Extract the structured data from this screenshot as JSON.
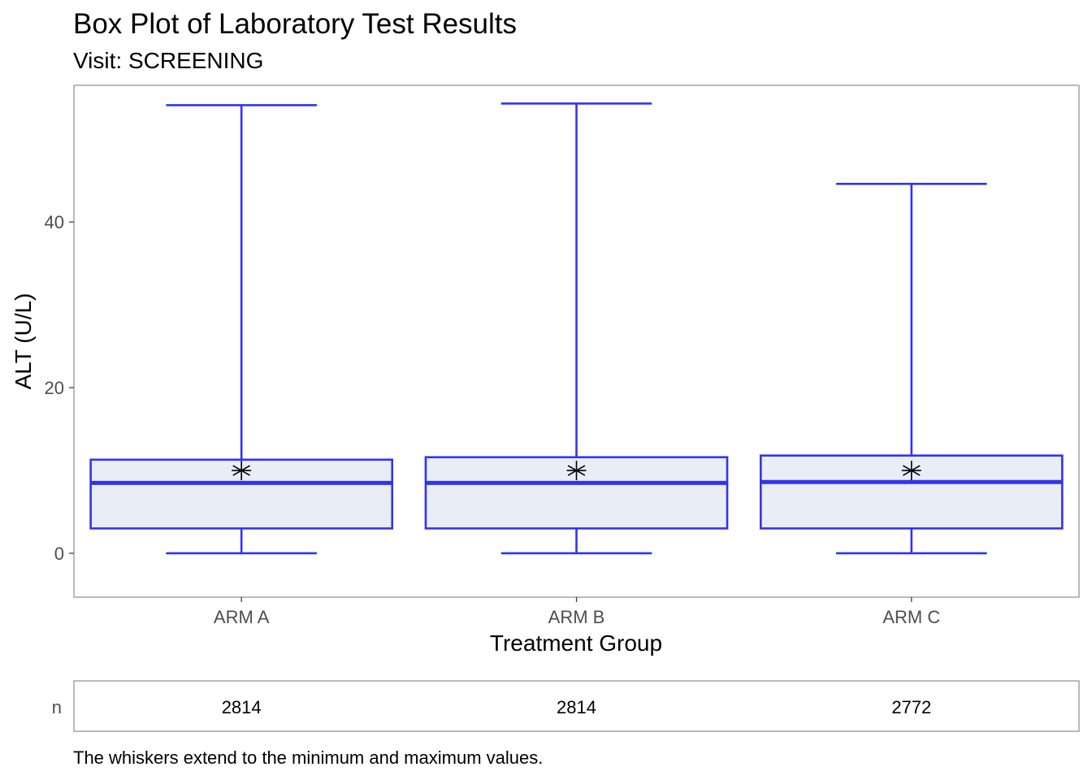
{
  "chart_data": {
    "type": "box",
    "title": "Box Plot of Laboratory Test Results",
    "subtitle": "Visit: SCREENING",
    "xlabel": "Treatment Group",
    "ylabel": "ALT (U/L)",
    "categories": [
      "ARM A",
      "ARM B",
      "ARM C"
    ],
    "ylim": [
      -5.3,
      56.5
    ],
    "yticks": [
      0,
      20,
      40
    ],
    "grid": false,
    "boxes": [
      {
        "category": "ARM A",
        "min": 0,
        "q1": 3.0,
        "median": 8.5,
        "q3": 11.3,
        "max": 54.1,
        "mean": 10.0
      },
      {
        "category": "ARM B",
        "min": 0,
        "q1": 3.0,
        "median": 8.5,
        "q3": 11.6,
        "max": 54.3,
        "mean": 10.0
      },
      {
        "category": "ARM C",
        "min": 0,
        "q1": 3.0,
        "median": 8.6,
        "q3": 11.8,
        "max": 44.6,
        "mean": 10.0
      }
    ],
    "count_table": {
      "row_label": "n",
      "values": [
        2814,
        2814,
        2772
      ]
    },
    "caption": "The whiskers extend to the minimum and maximum values.",
    "colors": {
      "box_stroke": "#3333ee",
      "box_fill": "#e8edf6",
      "mean_marker": "#000000",
      "panel_border": "#8c8c8c"
    }
  }
}
